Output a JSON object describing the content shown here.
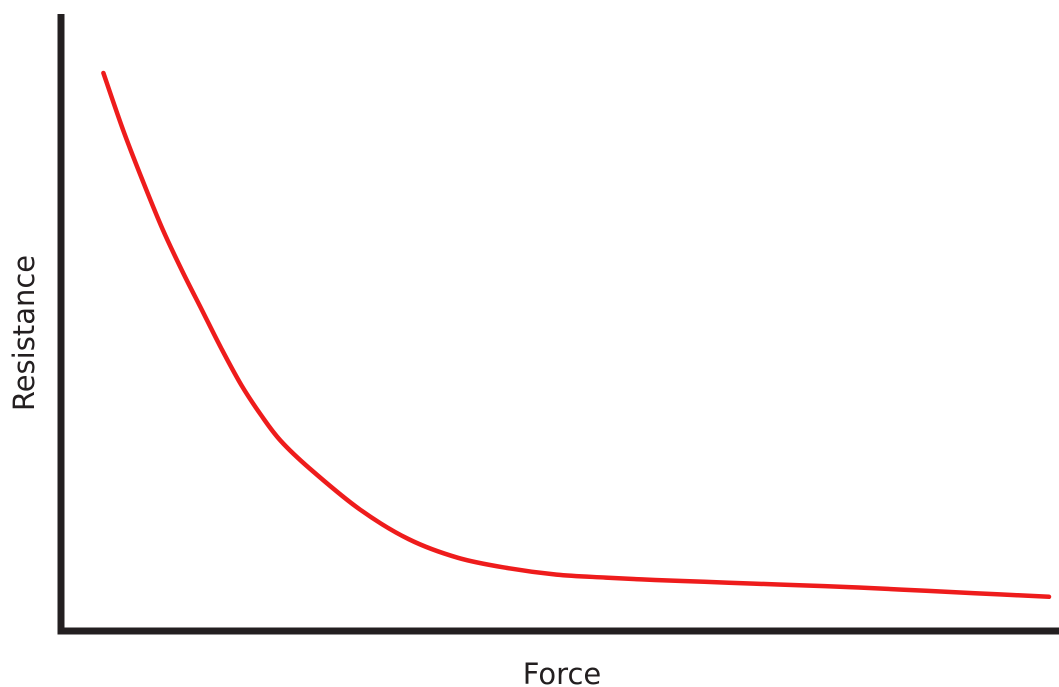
{
  "chart_data": {
    "type": "line",
    "xlabel": "Force",
    "ylabel": "Resistance",
    "xlim": [
      0,
      100
    ],
    "ylim": [
      0,
      100
    ],
    "grid": false,
    "ticks": false,
    "series": [
      {
        "color": "#ee1c1c",
        "x": [
          4,
          6,
          8,
          10,
          12,
          14,
          16,
          18,
          20,
          22,
          25,
          30,
          35,
          40,
          45,
          50,
          55,
          60,
          65,
          70,
          75,
          80,
          85,
          90,
          95,
          100
        ],
        "y": [
          92.5,
          83,
          74.5,
          66.5,
          59.5,
          53,
          46.5,
          40.5,
          35.5,
          31.2,
          26.5,
          19.8,
          14.8,
          11.7,
          10.0,
          8.9,
          8.4,
          8.0,
          7.7,
          7.4,
          7.1,
          6.8,
          6.4,
          6.0,
          5.6,
          5.2
        ]
      }
    ]
  }
}
